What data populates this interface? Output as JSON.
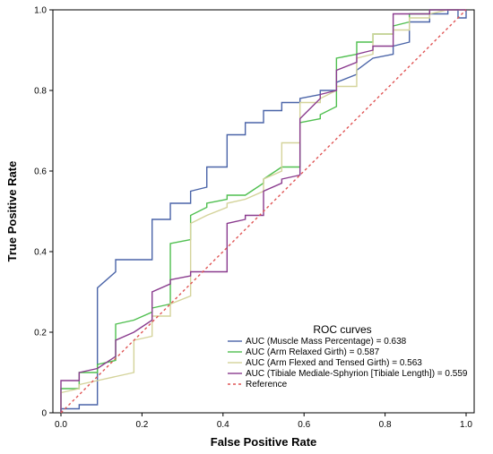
{
  "chart_data": {
    "type": "line",
    "xlabel": "False Positive Rate",
    "ylabel": "True Positive Rate",
    "xlim": [
      0,
      1
    ],
    "ylim": [
      0,
      1
    ],
    "x_ticks": [
      "0.0",
      "0.2",
      "0.4",
      "0.6",
      "0.8",
      "1.0"
    ],
    "y_ticks": [
      "0",
      "0.2",
      "0.4",
      "0.6",
      "0.8",
      "1.0"
    ],
    "grid": false,
    "legend": {
      "title": "ROC curves",
      "placement": "bottom-right"
    },
    "series": [
      {
        "name": "AUC (Muscle Mass Percentage) = 0.638",
        "color": "#4a64a8",
        "dash": "",
        "points": [
          [
            0,
            0
          ],
          [
            0,
            0.01
          ],
          [
            0.045,
            0.01
          ],
          [
            0.045,
            0.02
          ],
          [
            0.09,
            0.02
          ],
          [
            0.09,
            0.31
          ],
          [
            0.09,
            0.31
          ],
          [
            0.135,
            0.35
          ],
          [
            0.135,
            0.38
          ],
          [
            0.225,
            0.38
          ],
          [
            0.225,
            0.48
          ],
          [
            0.27,
            0.48
          ],
          [
            0.27,
            0.52
          ],
          [
            0.32,
            0.52
          ],
          [
            0.32,
            0.55
          ],
          [
            0.36,
            0.56
          ],
          [
            0.36,
            0.61
          ],
          [
            0.41,
            0.61
          ],
          [
            0.41,
            0.69
          ],
          [
            0.455,
            0.69
          ],
          [
            0.455,
            0.72
          ],
          [
            0.5,
            0.72
          ],
          [
            0.5,
            0.75
          ],
          [
            0.545,
            0.75
          ],
          [
            0.545,
            0.77
          ],
          [
            0.59,
            0.77
          ],
          [
            0.59,
            0.78
          ],
          [
            0.64,
            0.79
          ],
          [
            0.64,
            0.8
          ],
          [
            0.68,
            0.8
          ],
          [
            0.68,
            0.82
          ],
          [
            0.73,
            0.84
          ],
          [
            0.73,
            0.85
          ],
          [
            0.77,
            0.88
          ],
          [
            0.82,
            0.89
          ],
          [
            0.82,
            0.91
          ],
          [
            0.86,
            0.92
          ],
          [
            0.86,
            0.97
          ],
          [
            0.91,
            0.97
          ],
          [
            0.91,
            0.99
          ],
          [
            0.955,
            0.99
          ],
          [
            0.955,
            1.0
          ],
          [
            0.98,
            1.0
          ],
          [
            0.98,
            0.98
          ],
          [
            1.0,
            0.98
          ],
          [
            1.0,
            1.0
          ]
        ]
      },
      {
        "name": "AUC (Arm Relaxed Girth) = 0.587",
        "color": "#4fbf4f",
        "dash": "",
        "points": [
          [
            0,
            0
          ],
          [
            0,
            0.06
          ],
          [
            0.045,
            0.06
          ],
          [
            0.045,
            0.1
          ],
          [
            0.09,
            0.1
          ],
          [
            0.09,
            0.12
          ],
          [
            0.135,
            0.13
          ],
          [
            0.135,
            0.22
          ],
          [
            0.18,
            0.23
          ],
          [
            0.225,
            0.25
          ],
          [
            0.225,
            0.26
          ],
          [
            0.27,
            0.27
          ],
          [
            0.27,
            0.29
          ],
          [
            0.27,
            0.42
          ],
          [
            0.32,
            0.43
          ],
          [
            0.32,
            0.49
          ],
          [
            0.36,
            0.51
          ],
          [
            0.36,
            0.52
          ],
          [
            0.41,
            0.53
          ],
          [
            0.41,
            0.54
          ],
          [
            0.455,
            0.54
          ],
          [
            0.5,
            0.57
          ],
          [
            0.5,
            0.58
          ],
          [
            0.545,
            0.61
          ],
          [
            0.545,
            0.61
          ],
          [
            0.59,
            0.61
          ],
          [
            0.59,
            0.72
          ],
          [
            0.64,
            0.73
          ],
          [
            0.64,
            0.74
          ],
          [
            0.68,
            0.76
          ],
          [
            0.68,
            0.88
          ],
          [
            0.73,
            0.89
          ],
          [
            0.73,
            0.92
          ],
          [
            0.77,
            0.92
          ],
          [
            0.77,
            0.94
          ],
          [
            0.82,
            0.94
          ],
          [
            0.82,
            0.96
          ],
          [
            0.86,
            0.97
          ],
          [
            0.86,
            0.99
          ],
          [
            0.91,
            0.99
          ],
          [
            0.91,
            1.0
          ],
          [
            1.0,
            1.0
          ]
        ]
      },
      {
        "name": "AUC (Arm Flexed and Tensed Girth) = 0.563",
        "color": "#d4d39a",
        "dash": "",
        "points": [
          [
            0,
            0
          ],
          [
            0,
            0.05
          ],
          [
            0.045,
            0.06
          ],
          [
            0.045,
            0.07
          ],
          [
            0.09,
            0.08
          ],
          [
            0.135,
            0.09
          ],
          [
            0.18,
            0.1
          ],
          [
            0.18,
            0.18
          ],
          [
            0.225,
            0.19
          ],
          [
            0.225,
            0.24
          ],
          [
            0.27,
            0.24
          ],
          [
            0.27,
            0.27
          ],
          [
            0.32,
            0.29
          ],
          [
            0.32,
            0.47
          ],
          [
            0.36,
            0.49
          ],
          [
            0.41,
            0.51
          ],
          [
            0.41,
            0.52
          ],
          [
            0.455,
            0.53
          ],
          [
            0.5,
            0.55
          ],
          [
            0.5,
            0.58
          ],
          [
            0.545,
            0.6
          ],
          [
            0.545,
            0.67
          ],
          [
            0.59,
            0.67
          ],
          [
            0.59,
            0.77
          ],
          [
            0.64,
            0.77
          ],
          [
            0.64,
            0.78
          ],
          [
            0.68,
            0.8
          ],
          [
            0.68,
            0.81
          ],
          [
            0.73,
            0.81
          ],
          [
            0.73,
            0.88
          ],
          [
            0.77,
            0.89
          ],
          [
            0.77,
            0.94
          ],
          [
            0.82,
            0.94
          ],
          [
            0.82,
            0.95
          ],
          [
            0.86,
            0.95
          ],
          [
            0.86,
            0.98
          ],
          [
            0.91,
            0.98
          ],
          [
            0.91,
            0.99
          ],
          [
            0.955,
            1.0
          ],
          [
            1.0,
            1.0
          ]
        ]
      },
      {
        "name": "AUC (Tibiale Mediale-Sphyrion [Tibiale Length]) = 0.559",
        "color": "#8a3b8e",
        "dash": "",
        "points": [
          [
            0,
            0
          ],
          [
            0,
            0.08
          ],
          [
            0.045,
            0.08
          ],
          [
            0.045,
            0.1
          ],
          [
            0.09,
            0.11
          ],
          [
            0.09,
            0.11
          ],
          [
            0.135,
            0.14
          ],
          [
            0.135,
            0.18
          ],
          [
            0.18,
            0.2
          ],
          [
            0.225,
            0.23
          ],
          [
            0.225,
            0.3
          ],
          [
            0.27,
            0.32
          ],
          [
            0.27,
            0.33
          ],
          [
            0.32,
            0.34
          ],
          [
            0.32,
            0.35
          ],
          [
            0.36,
            0.35
          ],
          [
            0.41,
            0.35
          ],
          [
            0.41,
            0.47
          ],
          [
            0.455,
            0.48
          ],
          [
            0.455,
            0.49
          ],
          [
            0.5,
            0.49
          ],
          [
            0.5,
            0.55
          ],
          [
            0.545,
            0.57
          ],
          [
            0.545,
            0.58
          ],
          [
            0.59,
            0.59
          ],
          [
            0.59,
            0.73
          ],
          [
            0.64,
            0.78
          ],
          [
            0.64,
            0.79
          ],
          [
            0.68,
            0.8
          ],
          [
            0.68,
            0.85
          ],
          [
            0.73,
            0.87
          ],
          [
            0.73,
            0.89
          ],
          [
            0.77,
            0.9
          ],
          [
            0.77,
            0.91
          ],
          [
            0.82,
            0.91
          ],
          [
            0.82,
            0.99
          ],
          [
            0.86,
            0.99
          ],
          [
            0.91,
            0.99
          ],
          [
            0.91,
            1.0
          ],
          [
            1.0,
            1.0
          ]
        ]
      },
      {
        "name": "Reference",
        "color": "#e05656",
        "dash": "3,3",
        "points": [
          [
            0,
            0
          ],
          [
            1,
            1
          ]
        ]
      }
    ]
  }
}
